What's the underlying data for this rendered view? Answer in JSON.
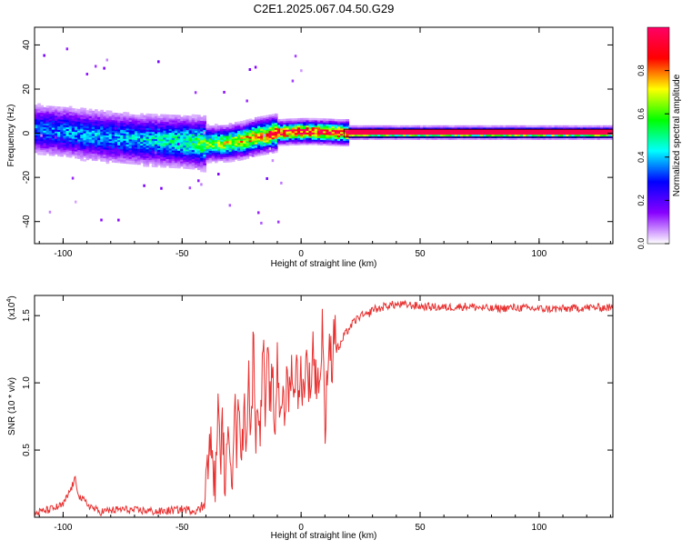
{
  "title": "C2E1.2025.067.04.50.G29",
  "chart_data": [
    {
      "type": "heatmap",
      "xlabel": "Height of straight line (km)",
      "ylabel": "Frequency (Hz)",
      "xlim": [
        -112,
        131
      ],
      "ylim": [
        -50,
        48
      ],
      "x_ticks": [
        "-100",
        "-50",
        "0",
        "50",
        "100"
      ],
      "x_tick_values": [
        -100,
        -50,
        0,
        50,
        100
      ],
      "y_ticks": [
        "-40",
        "-20",
        "0",
        "20",
        "40"
      ],
      "y_tick_values": [
        -40,
        -20,
        0,
        20,
        40
      ],
      "colorbar": {
        "label": "Normalized spectral amplitude",
        "range": [
          0,
          1
        ],
        "ticks": [
          "0.0",
          "0.2",
          "0.4",
          "0.6",
          "0.8"
        ],
        "tick_values": [
          0.0,
          0.2,
          0.4,
          0.6,
          0.8
        ],
        "stops": [
          "#ffffff",
          "#8800ff",
          "#0000ff",
          "#00ffff",
          "#00ff00",
          "#ffff00",
          "#ff0000",
          "#ff0066"
        ]
      },
      "ridge": {
        "x": [
          -112,
          -100,
          -90,
          -80,
          -70,
          -60,
          -50,
          -45,
          -40,
          -35,
          -30,
          -25,
          -20,
          -15,
          -10,
          -5,
          0,
          5,
          10,
          15,
          20,
          131
        ],
        "freq": [
          1.5,
          0.5,
          -1,
          -2,
          -3,
          -3.5,
          -4,
          -4.5,
          -5,
          -4.8,
          -4.5,
          -3.5,
          -2,
          -1,
          0,
          0.3,
          0.5,
          0.5,
          0.3,
          0,
          0,
          0
        ],
        "amplitude": [
          0.35,
          0.38,
          0.4,
          0.4,
          0.42,
          0.45,
          0.5,
          0.55,
          0.62,
          0.65,
          0.7,
          0.75,
          0.8,
          0.85,
          0.9,
          0.92,
          0.95,
          0.95,
          0.96,
          0.97,
          0.98,
          0.98
        ]
      }
    },
    {
      "type": "line",
      "xlabel": "Height of straight line (km)",
      "ylabel": "SNR (10 * v/v)",
      "y_multiplier": "(x10",
      "y_multiplier_exp": "4",
      "xlim": [
        -112,
        131
      ],
      "ylim": [
        0,
        1.65
      ],
      "x_ticks": [
        "-100",
        "-50",
        "0",
        "50",
        "100"
      ],
      "x_tick_values": [
        -100,
        -50,
        0,
        50,
        100
      ],
      "y_ticks": [
        "0.5",
        "1.0",
        "1.5"
      ],
      "y_tick_values": [
        0.5,
        1.0,
        1.5
      ],
      "series": [
        {
          "color": "#e83030",
          "x": [
            -112,
            -105,
            -100,
            -97,
            -95,
            -93,
            -90,
            -85,
            -80,
            -75,
            -70,
            -65,
            -60,
            -55,
            -50,
            -45,
            -42,
            -40,
            -38,
            -36,
            -35,
            -34,
            -33,
            -32,
            -30,
            -29,
            -28,
            -27,
            -26,
            -25,
            -24,
            -23,
            -22,
            -21,
            -20,
            -19,
            -18,
            -17,
            -16,
            -15,
            -14,
            -13,
            -12,
            -11,
            -10,
            -9,
            -8,
            -7,
            -6,
            -5,
            -4,
            -3,
            -2,
            -1,
            0,
            1,
            2,
            3,
            4,
            5,
            6,
            7,
            8,
            9,
            10,
            11,
            12,
            13,
            14,
            15,
            16,
            18,
            20,
            22,
            25,
            28,
            30,
            33,
            35,
            38,
            40,
            45,
            50,
            60,
            70,
            80,
            90,
            100,
            110,
            120,
            131
          ],
          "y": [
            0.03,
            0.06,
            0.09,
            0.2,
            0.28,
            0.15,
            0.1,
            0.04,
            0.05,
            0.06,
            0.05,
            0.05,
            0.04,
            0.05,
            0.06,
            0.05,
            0.06,
            0.3,
            0.55,
            0.2,
            0.88,
            0.4,
            0.7,
            0.25,
            0.65,
            0.3,
            0.9,
            0.45,
            1.0,
            0.35,
            0.85,
            0.6,
            1.1,
            0.5,
            1.45,
            0.55,
            0.9,
            0.65,
            1.35,
            0.7,
            1.2,
            0.85,
            1.05,
            0.6,
            1.2,
            0.8,
            0.95,
            0.7,
            1.05,
            0.9,
            1.2,
            0.75,
            1.35,
            0.8,
            1.1,
            0.9,
            1.2,
            1.05,
            0.95,
            1.3,
            1.0,
            1.1,
            0.95,
            1.55,
            0.5,
            1.15,
            1.35,
            1.1,
            1.4,
            1.3,
            1.25,
            1.35,
            1.4,
            1.45,
            1.5,
            1.5,
            1.55,
            1.55,
            1.57,
            1.58,
            1.58,
            1.58,
            1.57,
            1.56,
            1.57,
            1.55,
            1.56,
            1.55,
            1.55,
            1.56,
            1.56
          ],
          "noise_amplitude": 0.03
        }
      ]
    }
  ]
}
